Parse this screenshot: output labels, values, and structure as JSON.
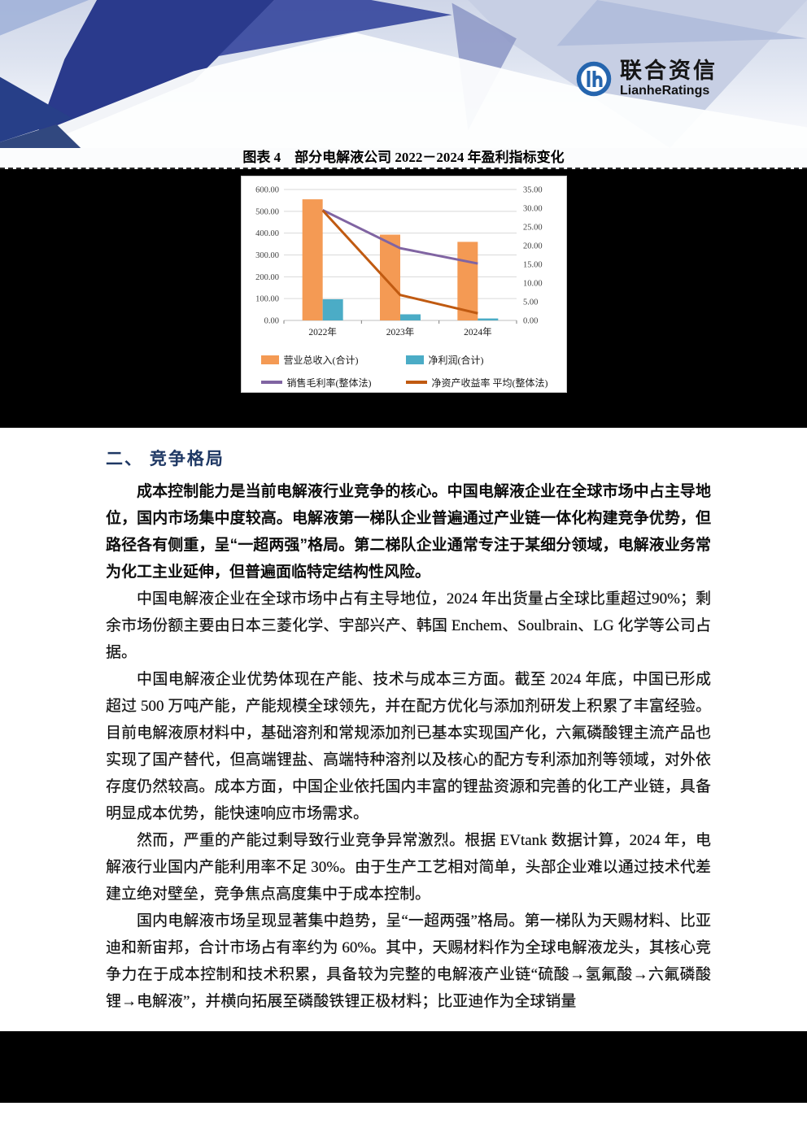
{
  "header": {
    "brand_zh": "联合资信",
    "brand_en": "LianheRatings"
  },
  "figure": {
    "title": "图表 4　部分电解液公司 2022－2024 年盈利指标变化"
  },
  "chart_data": {
    "type": "bar",
    "subtype": "combo-bar-line-dual-axis",
    "title": "部分电解液公司2022-2024年盈利指标变化",
    "categories": [
      "2022年",
      "2023年",
      "2024年"
    ],
    "series": [
      {
        "name": "营业总收入(合计)",
        "kind": "bar",
        "axis": "left",
        "color": "#F49A54",
        "values": [
          555,
          393,
          360
        ]
      },
      {
        "name": "净利润(合计)",
        "kind": "bar",
        "axis": "left",
        "color": "#4BACC6",
        "values": [
          97,
          28,
          9
        ]
      },
      {
        "name": "销售毛利率(整体法)",
        "kind": "line",
        "axis": "right",
        "color": "#8064A2",
        "values": [
          29.5,
          19.3,
          15.2
        ]
      },
      {
        "name": "净资产收益率 平均(整体法)",
        "kind": "line",
        "axis": "right",
        "color": "#C05A11",
        "values": [
          29.4,
          6.8,
          1.9
        ]
      }
    ],
    "left_axis": {
      "min": 0,
      "max": 600,
      "step": 100,
      "decimals": 2
    },
    "right_axis": {
      "min": 0,
      "max": 35,
      "step": 5,
      "decimals": 2
    },
    "grid": true,
    "legend_position": "bottom",
    "gridline_color": "#D9D9D9",
    "axis_text_color": "#3f3f3f"
  },
  "section": {
    "heading": "二、 竞争格局",
    "paragraphs": [
      "成本控制能力是当前电解液行业竞争的核心。中国电解液企业在全球市场中占主导地位，国内市场集中度较高。电解液第一梯队企业普遍通过产业链一体化构建竞争优势，但路径各有侧重，呈“一超两强”格局。第二梯队企业通常专注于某细分领域，电解液业务常为化工主业延伸，但普遍面临特定结构性风险。",
      "中国电解液企业在全球市场中占有主导地位，2024 年出货量占全球比重超过90%；剩余市场份额主要由日本三菱化学、宇部兴产、韩国 Enchem、Soulbrain、LG 化学等公司占据。",
      "中国电解液企业优势体现在产能、技术与成本三方面。截至 2024 年底，中国已形成超过 500 万吨产能，产能规模全球领先，并在配方优化与添加剂研发上积累了丰富经验。目前电解液原材料中，基础溶剂和常规添加剂已基本实现国产化，六氟磷酸锂主流产品也实现了国产替代，但高端锂盐、高端特种溶剂以及核心的配方专利添加剂等领域，对外依存度仍然较高。成本方面，中国企业依托国内丰富的锂盐资源和完善的化工产业链，具备明显成本优势，能快速响应市场需求。",
      "然而，严重的产能过剩导致行业竞争异常激烈。根据 EVtank 数据计算，2024 年，电解液行业国内产能利用率不足 30%。由于生产工艺相对简单，头部企业难以通过技术代差建立绝对壁垒，竞争焦点高度集中于成本控制。",
      "国内电解液市场呈现显著集中趋势，呈“一超两强”格局。第一梯队为天赐材料、比亚迪和新宙邦，合计市场占有率约为 60%。其中，天赐材料作为全球电解液龙头，其核心竞争力在于成本控制和技术积累，具备较为完整的电解液产业链“硫酸→氢氟酸→六氟磷酸锂→电解液”，并横向拓展至磷酸铁锂正极材料；比亚迪作为全球销量"
    ]
  }
}
